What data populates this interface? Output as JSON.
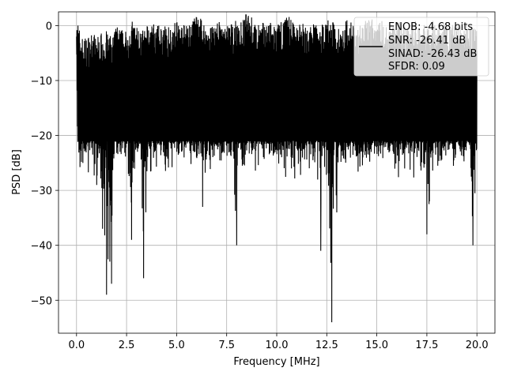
{
  "chart_data": {
    "type": "line",
    "xlabel": "Frequency [MHz]",
    "ylabel": "PSD [dB]",
    "xlim": [
      -0.9,
      20.9
    ],
    "ylim": [
      -56,
      2.5
    ],
    "xticks": [
      0.0,
      2.5,
      5.0,
      7.5,
      10.0,
      12.5,
      15.0,
      17.5,
      20.0
    ],
    "xtick_labels": [
      "0.0",
      "2.5",
      "5.0",
      "7.5",
      "10.0",
      "12.5",
      "15.0",
      "17.5",
      "20.0"
    ],
    "yticks": [
      0,
      -10,
      -20,
      -30,
      -40,
      -50
    ],
    "ytick_labels": [
      "0",
      "−10",
      "−20",
      "−30",
      "−40",
      "−50"
    ],
    "grid": true,
    "legend_position": "top-right",
    "series": [
      {
        "color": "#000000",
        "x": [
          0.0,
          0.05,
          0.1,
          0.2,
          0.3,
          0.5,
          0.8,
          1.0,
          1.3,
          1.5,
          1.75,
          2.0,
          2.5,
          2.75,
          3.0,
          3.35,
          3.7,
          4.0,
          4.5,
          5.0,
          5.5,
          6.0,
          6.3,
          6.5,
          7.0,
          7.5,
          8.0,
          8.1,
          8.6,
          9.0,
          9.5,
          10.0,
          10.5,
          11.0,
          11.5,
          12.0,
          12.2,
          12.5,
          12.75,
          13.0,
          13.5,
          14.0,
          14.5,
          15.0,
          15.5,
          16.0,
          16.5,
          17.0,
          17.5,
          17.8,
          18.0,
          18.5,
          19.0,
          19.5,
          19.8,
          20.0
        ],
        "y": [
          -2,
          -14,
          -18,
          -22,
          -24,
          -26,
          -24,
          -26,
          -37,
          -49,
          -47,
          -28,
          -26,
          -39,
          -28,
          -46,
          -28,
          -26,
          -28,
          -27,
          -26,
          -28,
          -33,
          -26,
          -28,
          -27,
          -40,
          -27,
          -28,
          -27,
          -26,
          -27,
          -28,
          -30,
          -28,
          -27,
          -41,
          -28,
          -54,
          -34,
          -30,
          -27,
          -28,
          -27,
          -26,
          -28,
          -30,
          -29,
          -38,
          -28,
          -27,
          -29,
          -28,
          -27,
          -40,
          -26
        ],
        "upper": [
          0,
          -3,
          -5,
          -6,
          -7,
          -7,
          -6,
          -7,
          -6,
          -6,
          -7,
          -5,
          -6,
          -4,
          -5,
          -6,
          -4,
          -5,
          -5,
          -4,
          -5,
          -3,
          -4,
          -5,
          -4,
          -5,
          -4,
          -5,
          -2,
          -5,
          -4,
          -5,
          -3,
          -4,
          -5,
          -4,
          -5,
          -3,
          -4,
          -5,
          -4,
          -5,
          -4,
          -3,
          -5,
          -4,
          -5,
          -4,
          -5,
          -4,
          -5,
          -4,
          -5,
          -4,
          -5,
          -6
        ],
        "lower": [
          -2,
          -20,
          -26,
          -28,
          -28,
          -30,
          -28,
          -29,
          -37,
          -49,
          -47,
          -28,
          -26,
          -39,
          -28,
          -46,
          -28,
          -26,
          -28,
          -27,
          -26,
          -28,
          -33,
          -26,
          -28,
          -27,
          -40,
          -27,
          -28,
          -27,
          -26,
          -27,
          -28,
          -30,
          -28,
          -27,
          -41,
          -28,
          -54,
          -34,
          -30,
          -27,
          -28,
          -27,
          -26,
          -28,
          -30,
          -29,
          -38,
          -28,
          -27,
          -29,
          -28,
          -27,
          -40,
          -26
        ]
      }
    ],
    "legend_lines": [
      "ENOB: -4.68 bits",
      "SNR: -26.41 dB",
      "SINAD: -26.43 dB",
      "SFDR: 0.09"
    ]
  }
}
